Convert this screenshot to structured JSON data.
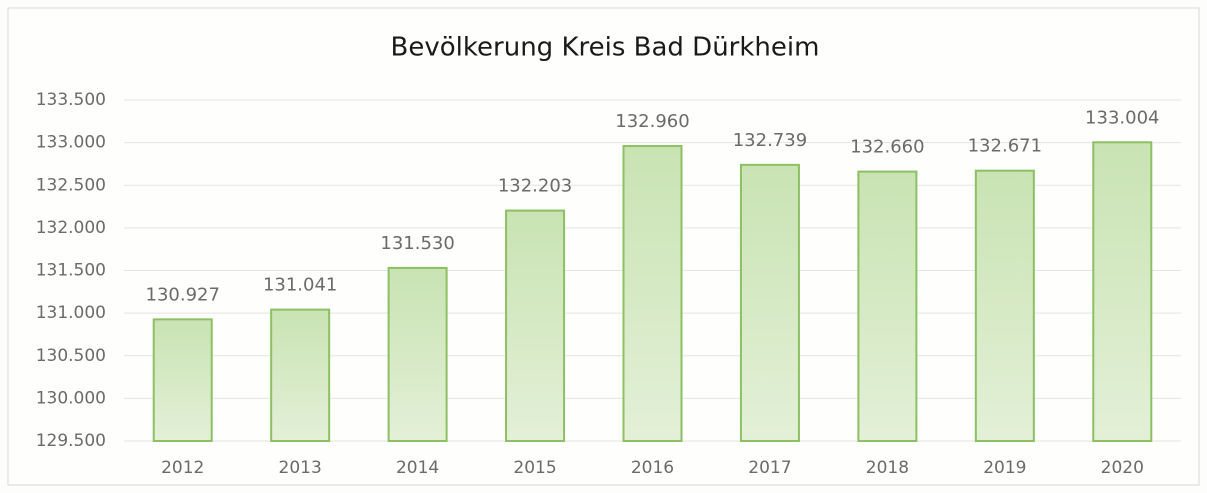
{
  "chart_data": {
    "type": "bar",
    "title": "Bevölkerung Kreis Bad Dürkheim",
    "categories": [
      "2012",
      "2013",
      "2014",
      "2015",
      "2016",
      "2017",
      "2018",
      "2019",
      "2020"
    ],
    "values": [
      130927,
      131041,
      131530,
      132203,
      132960,
      132739,
      132660,
      132671,
      133004
    ],
    "value_labels": [
      "130.927",
      "131.041",
      "131.530",
      "132.203",
      "132.960",
      "132.739",
      "132.660",
      "132.671",
      "133.004"
    ],
    "color": "#8cc063",
    "ylim": [
      129500,
      133500
    ],
    "yticks": [
      {
        "value": 129500,
        "label": "129.500"
      },
      {
        "value": 130000,
        "label": "130.000"
      },
      {
        "value": 130500,
        "label": "130.500"
      },
      {
        "value": 131000,
        "label": "131.000"
      },
      {
        "value": 131500,
        "label": "131.500"
      },
      {
        "value": 132000,
        "label": "132.000"
      },
      {
        "value": 132500,
        "label": "132.500"
      },
      {
        "value": 133000,
        "label": "133.000"
      },
      {
        "value": 133500,
        "label": "133.500"
      }
    ],
    "grid": true
  }
}
